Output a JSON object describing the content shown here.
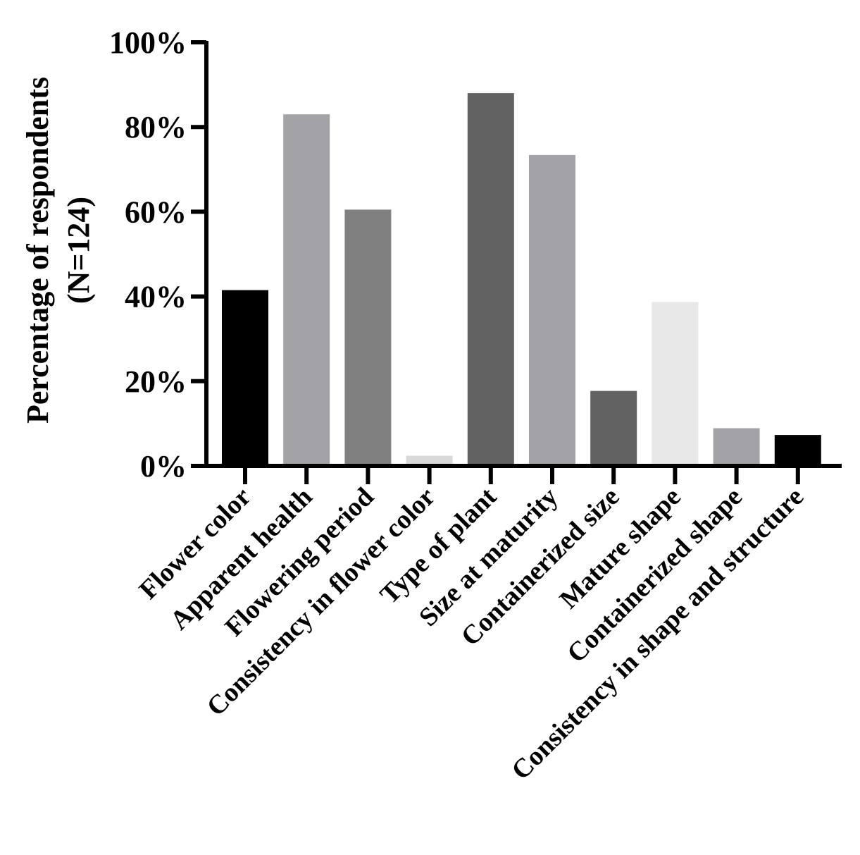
{
  "chart_data": {
    "type": "bar",
    "title": "",
    "xlabel": "",
    "ylabel_lines": [
      "Percentage of respondents",
      "(N=124)"
    ],
    "ylim": [
      0,
      100
    ],
    "yticks": [
      0,
      20,
      40,
      60,
      80,
      100
    ],
    "ytick_labels": [
      "0%",
      "20%",
      "40%",
      "60%",
      "80%",
      "100%"
    ],
    "grid": false,
    "legend": "none",
    "categories": [
      "Flower color",
      "Apparent health",
      "Flowering period",
      "Consistency in flower color",
      "Type of plant",
      "Size at maturity",
      "Containerized size",
      "Mature shape",
      "Containerized shape",
      "Consistency in shape and structure"
    ],
    "values": [
      41.5,
      83,
      60.5,
      2.4,
      88,
      73.4,
      17.7,
      38.7,
      8.9,
      7.3
    ],
    "colors": [
      "#000000",
      "#a3a2a7",
      "#808080",
      "#d9d9d9",
      "#626262",
      "#a3a2a7",
      "#626262",
      "#e8e8e8",
      "#a3a2a7",
      "#000000"
    ]
  }
}
